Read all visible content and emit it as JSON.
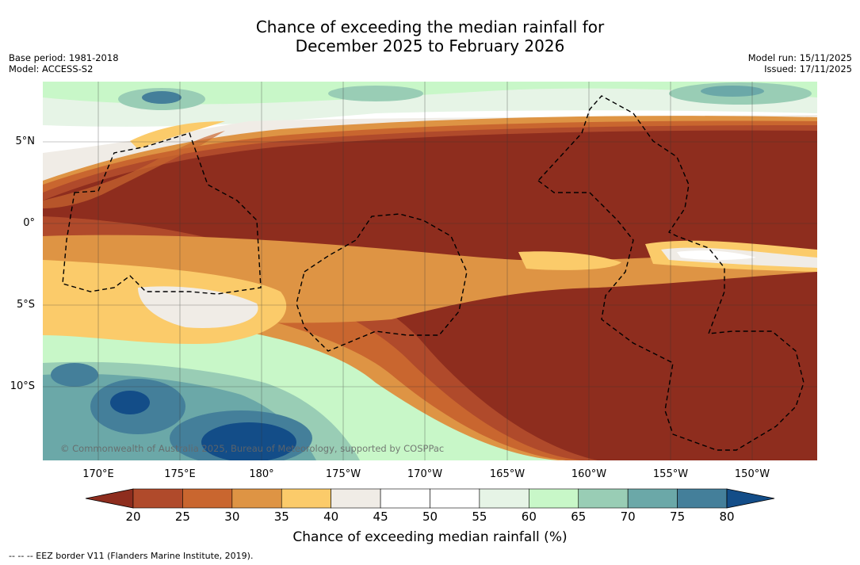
{
  "title": {
    "line1": "Chance of exceeding the median rainfall for",
    "line2": "December 2025 to February 2026"
  },
  "meta_left": {
    "base_period": "Base period: 1981-2018",
    "model": "Model: ACCESS-S2"
  },
  "meta_right": {
    "model_run": "Model run: 15/11/2025",
    "issued": "Issued: 17/11/2025"
  },
  "map": {
    "lat_ticks": [
      "5°N",
      "0°",
      "5°S",
      "10°S"
    ],
    "lon_ticks": [
      "170°E",
      "175°E",
      "180°",
      "175°W",
      "170°W",
      "165°W",
      "160°W",
      "155°W",
      "150°W"
    ],
    "copyright": "© Commonwealth of Australia 2025, Bureau of Meteorology, supported by COSPPac"
  },
  "colorbar": {
    "title": "Chance of exceeding median rainfall (%)",
    "labels": [
      "20",
      "25",
      "30",
      "35",
      "40",
      "45",
      "50",
      "55",
      "60",
      "65",
      "70",
      "75",
      "80"
    ],
    "colors": [
      "#8e2d1e",
      "#b04a2b",
      "#c9662f",
      "#de9444",
      "#fbcb6a",
      "#f0ece6",
      "#ffffff",
      "#ffffff",
      "#e6f4e6",
      "#c8f7c8",
      "#99cdb5",
      "#6ba8a8",
      "#447f9a",
      "#134d88"
    ],
    "under_color": "#8e2d1e",
    "over_color": "#134d88"
  },
  "footnote": "--  --  -- EEZ border V11 (Flanders Marine Institute, 2019)."
}
